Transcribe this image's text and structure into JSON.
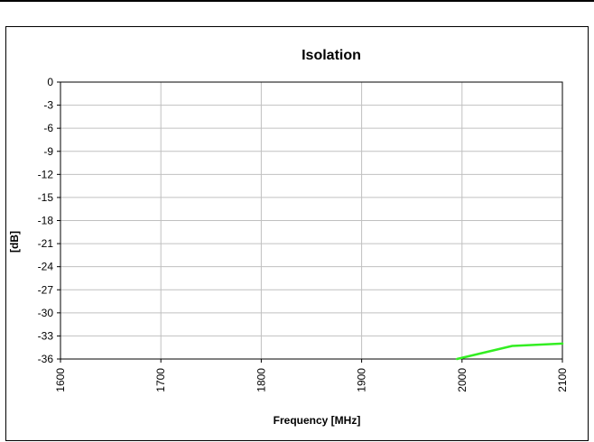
{
  "chart_data": {
    "type": "line",
    "title": "Isolation",
    "xlabel": "Frequency [MHz]",
    "ylabel": "[dB]",
    "xlim": [
      1600,
      2100
    ],
    "ylim": [
      -36,
      0
    ],
    "x_ticks": [
      "1600",
      "1700",
      "1800",
      "1900",
      "2000",
      "2100"
    ],
    "y_ticks": [
      "0",
      "-3",
      "-6",
      "-9",
      "-12",
      "-15",
      "-18",
      "-21",
      "-24",
      "-27",
      "-30",
      "-33",
      "-36"
    ],
    "grid": true,
    "legend": "none",
    "series": [
      {
        "color": "#33ee22",
        "x": [
          1995,
          2050,
          2100
        ],
        "values": [
          -36,
          -34.3,
          -34
        ]
      }
    ]
  }
}
